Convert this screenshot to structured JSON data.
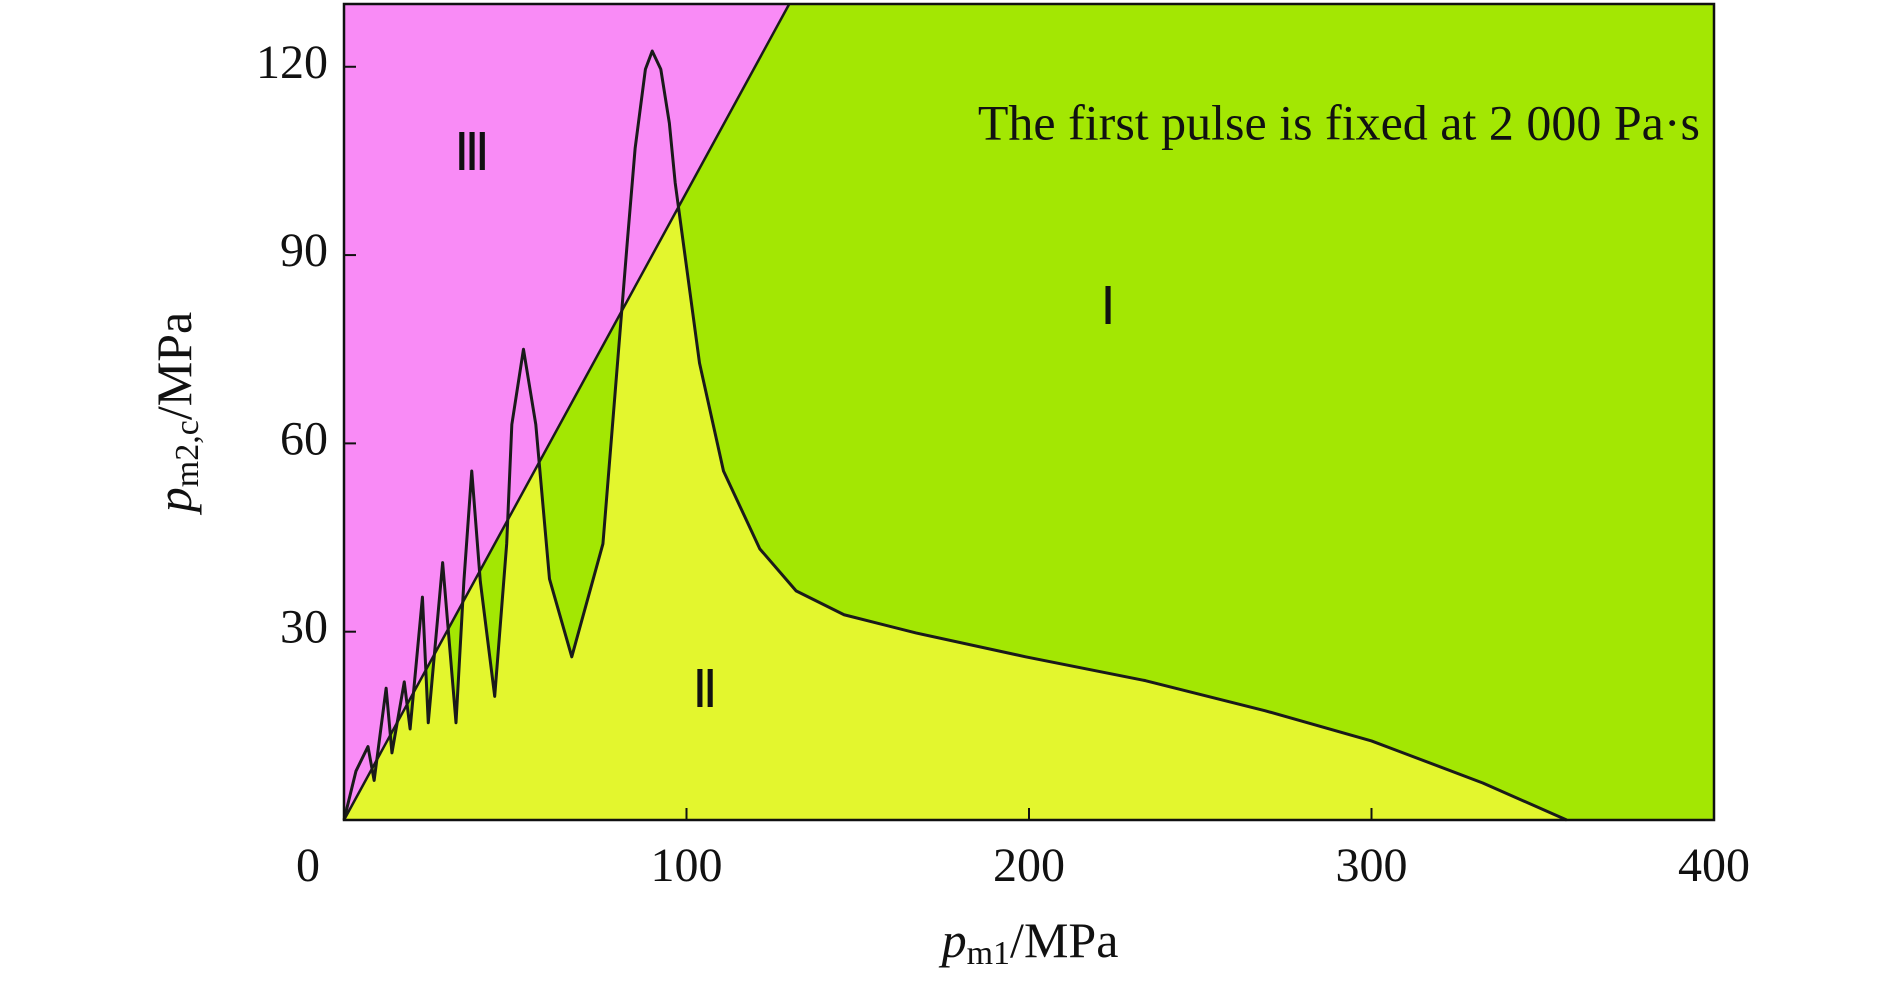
{
  "chart_data": {
    "type": "region",
    "annotation": "The first pulse is fixed at 2 000 Pa·s",
    "x_label": {
      "symbol": "p",
      "subscript": "m1",
      "unit": "/MPa"
    },
    "y_label": {
      "symbol": "p",
      "subscript": "m2,c",
      "unit": "/MPa"
    },
    "xlim": [
      0,
      400
    ],
    "ylim": [
      0,
      130
    ],
    "xticks": [
      0,
      100,
      200,
      300,
      400
    ],
    "yticks": [
      30,
      60,
      90,
      120
    ],
    "regions": [
      {
        "label": "Ⅰ",
        "color": "#a3e703"
      },
      {
        "label": "Ⅱ",
        "color": "#e3f62e"
      },
      {
        "label": "Ⅲ",
        "color": "#f98bf6"
      }
    ],
    "boundary": {
      "color": "#1a1a1a",
      "x": [
        0,
        130
      ],
      "y": [
        0,
        130
      ]
    },
    "curve": {
      "color": "#1a1a1a",
      "x": [
        0,
        3.5,
        7,
        8.8,
        12.3,
        14,
        17.6,
        19.3,
        22.9,
        24.6,
        28.8,
        32.7,
        35,
        37.3,
        39.8,
        44,
        47.5,
        49,
        52.4,
        56,
        60,
        66.5,
        75.6,
        79,
        82.7,
        85,
        88,
        90,
        92.5,
        95,
        96.7,
        103.8,
        110.8,
        121.4,
        132,
        146,
        167,
        199,
        234,
        269,
        300,
        332.5,
        357
      ],
      "y": [
        0,
        7.8,
        11.7,
        6.3,
        21,
        10.7,
        22,
        14.5,
        35.5,
        15.5,
        41,
        15.5,
        38,
        55.6,
        38,
        19.7,
        44,
        63,
        75,
        63,
        38.4,
        26,
        44,
        67,
        92,
        107,
        119.6,
        122.5,
        119.6,
        111,
        101.5,
        72.8,
        55.6,
        43.2,
        36.5,
        32.7,
        29.8,
        26,
        22.2,
        17.4,
        12.6,
        5.9,
        0
      ]
    }
  }
}
